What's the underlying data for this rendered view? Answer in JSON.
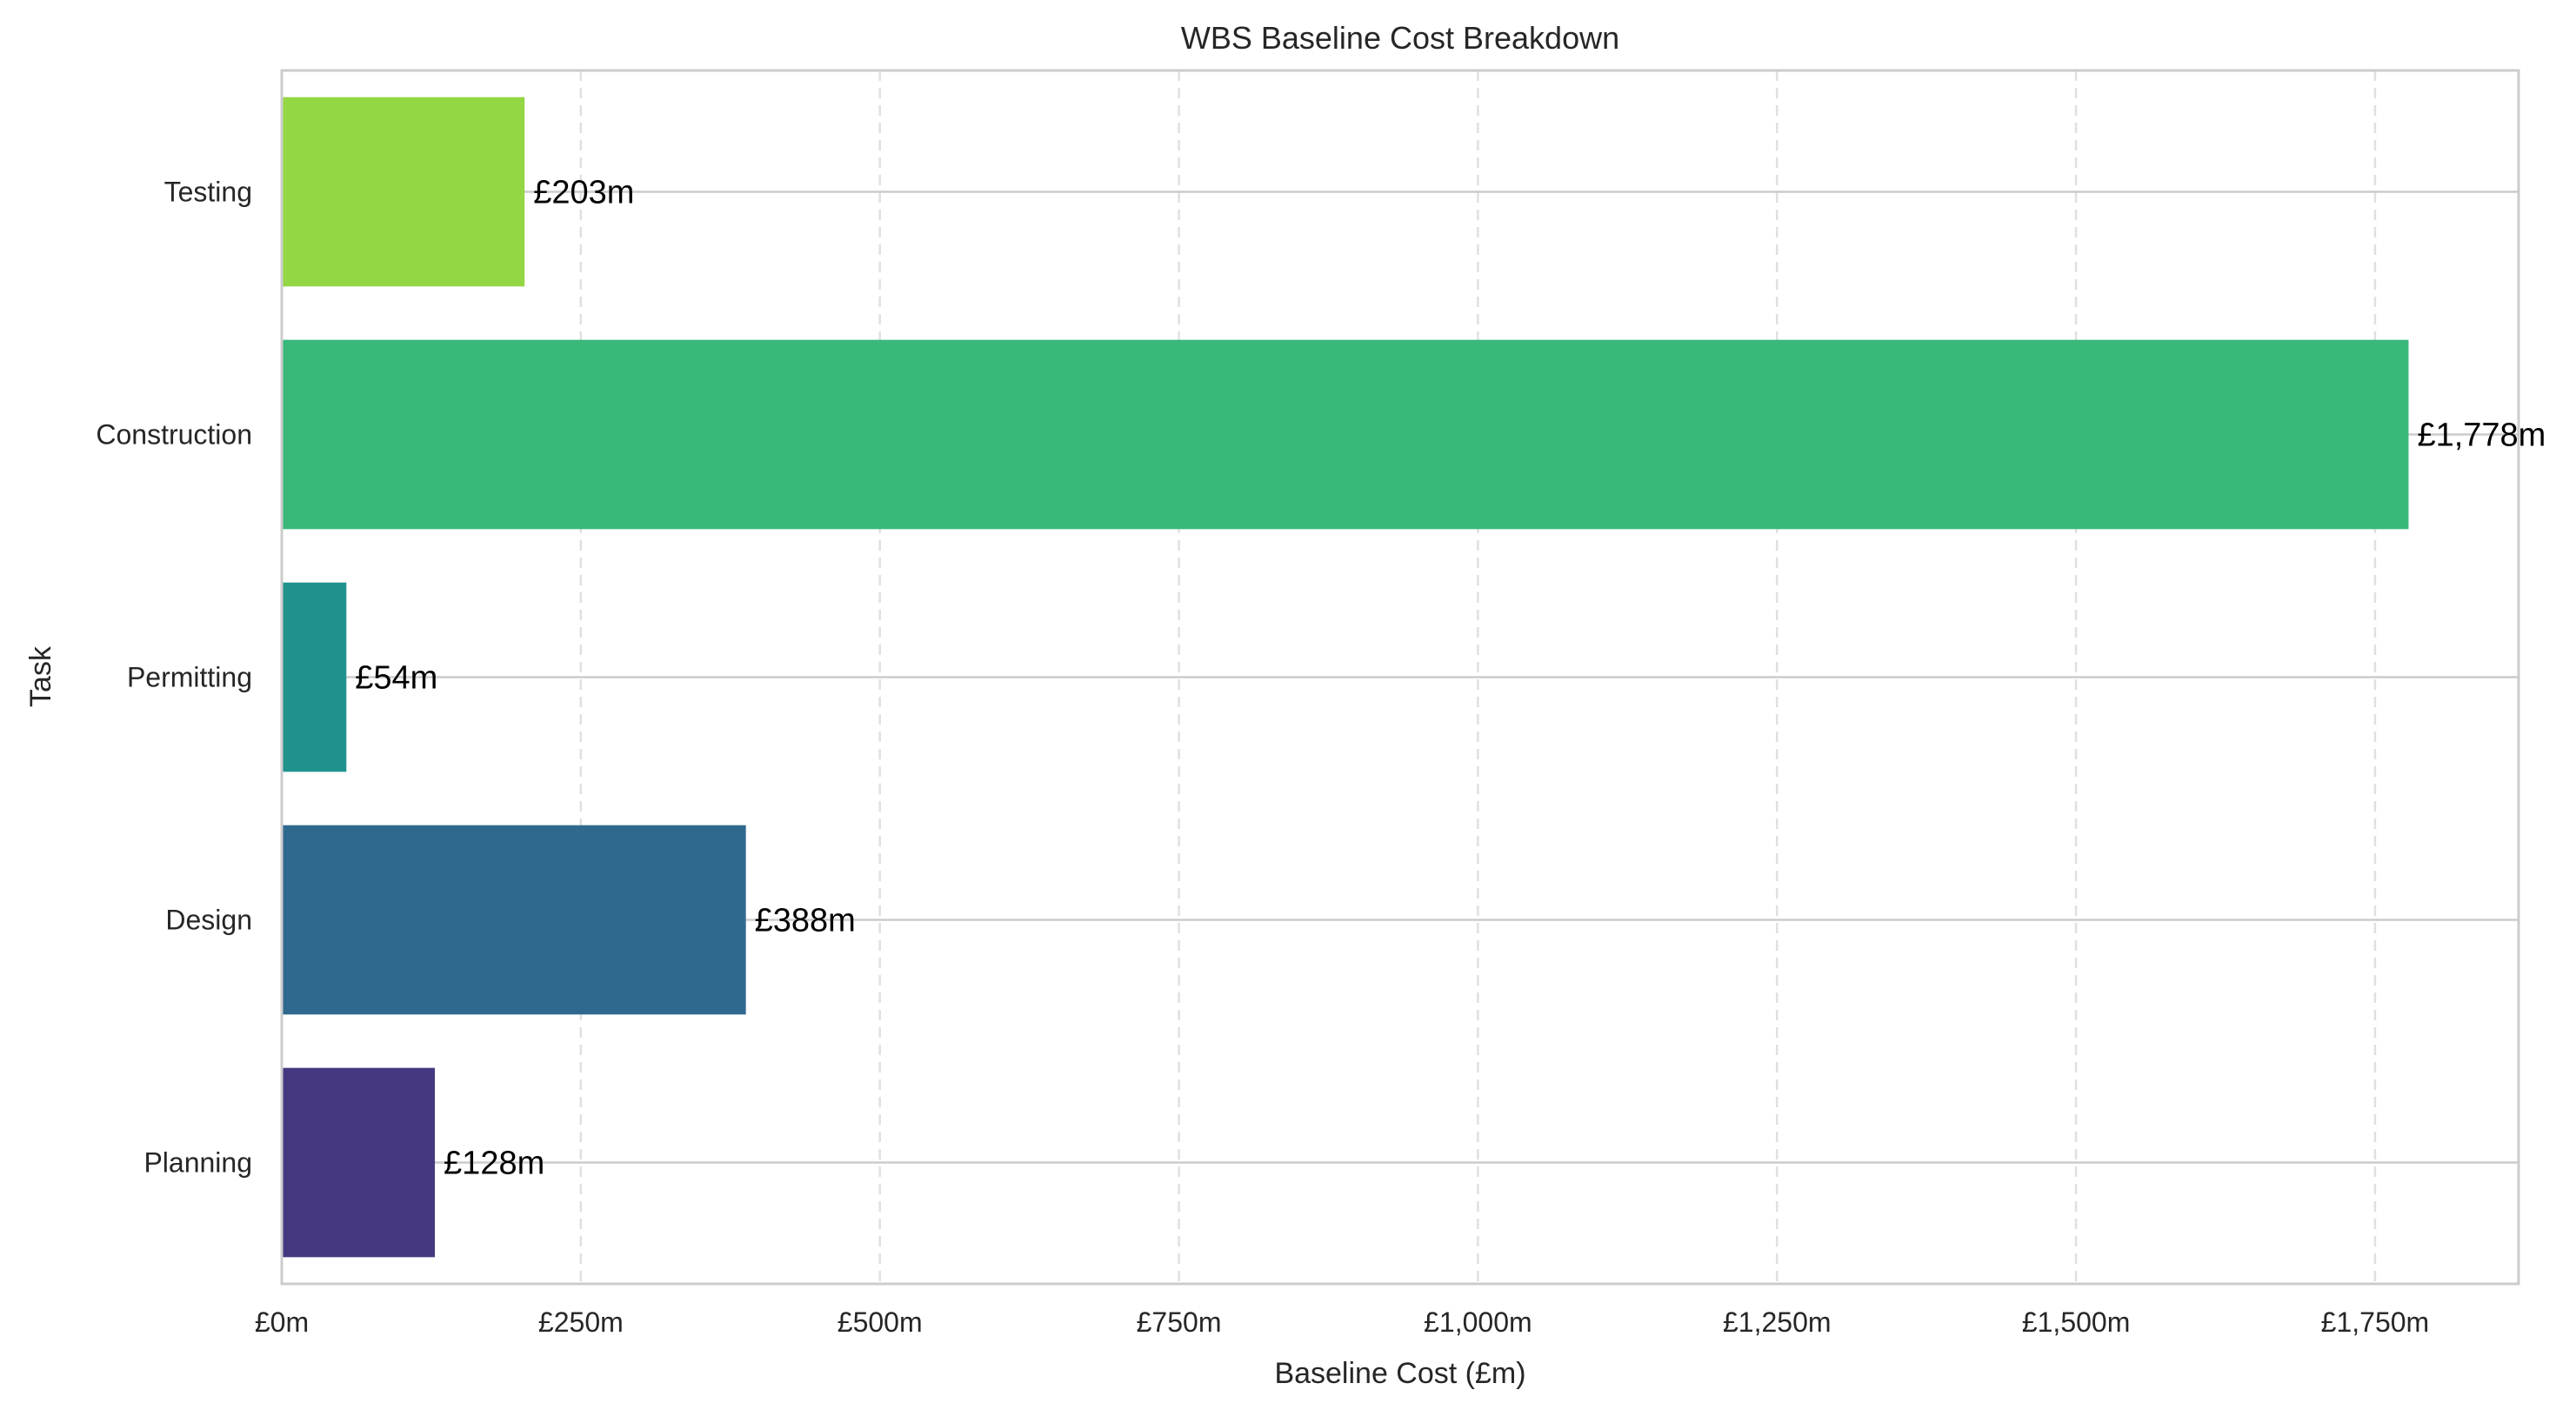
{
  "chart_data": {
    "type": "bar",
    "orientation": "horizontal",
    "title": "WBS Baseline Cost Breakdown",
    "xlabel": "Baseline Cost (£m)",
    "ylabel": "Task",
    "categories": [
      "Planning",
      "Design",
      "Permitting",
      "Construction",
      "Testing"
    ],
    "values": [
      128,
      388,
      54,
      1778,
      203
    ],
    "value_labels": [
      "£128m",
      "£388m",
      "£54m",
      "£1,778m",
      "£203m"
    ],
    "colors": [
      "#463880",
      "#30698e",
      "#20928c",
      "#38b87a",
      "#93d744"
    ],
    "xlim": [
      0,
      1870
    ],
    "xticks": [
      0,
      250,
      500,
      750,
      1000,
      1250,
      1500,
      1750
    ],
    "xtick_labels": [
      "£0m",
      "£250m",
      "£500m",
      "£750m",
      "£1,000m",
      "£1,250m",
      "£1,500m",
      "£1,750m"
    ],
    "grid": {
      "x": "dashed",
      "y": "solid"
    },
    "axis_color": "#cccccc",
    "grid_color": "#e0e0e0"
  }
}
